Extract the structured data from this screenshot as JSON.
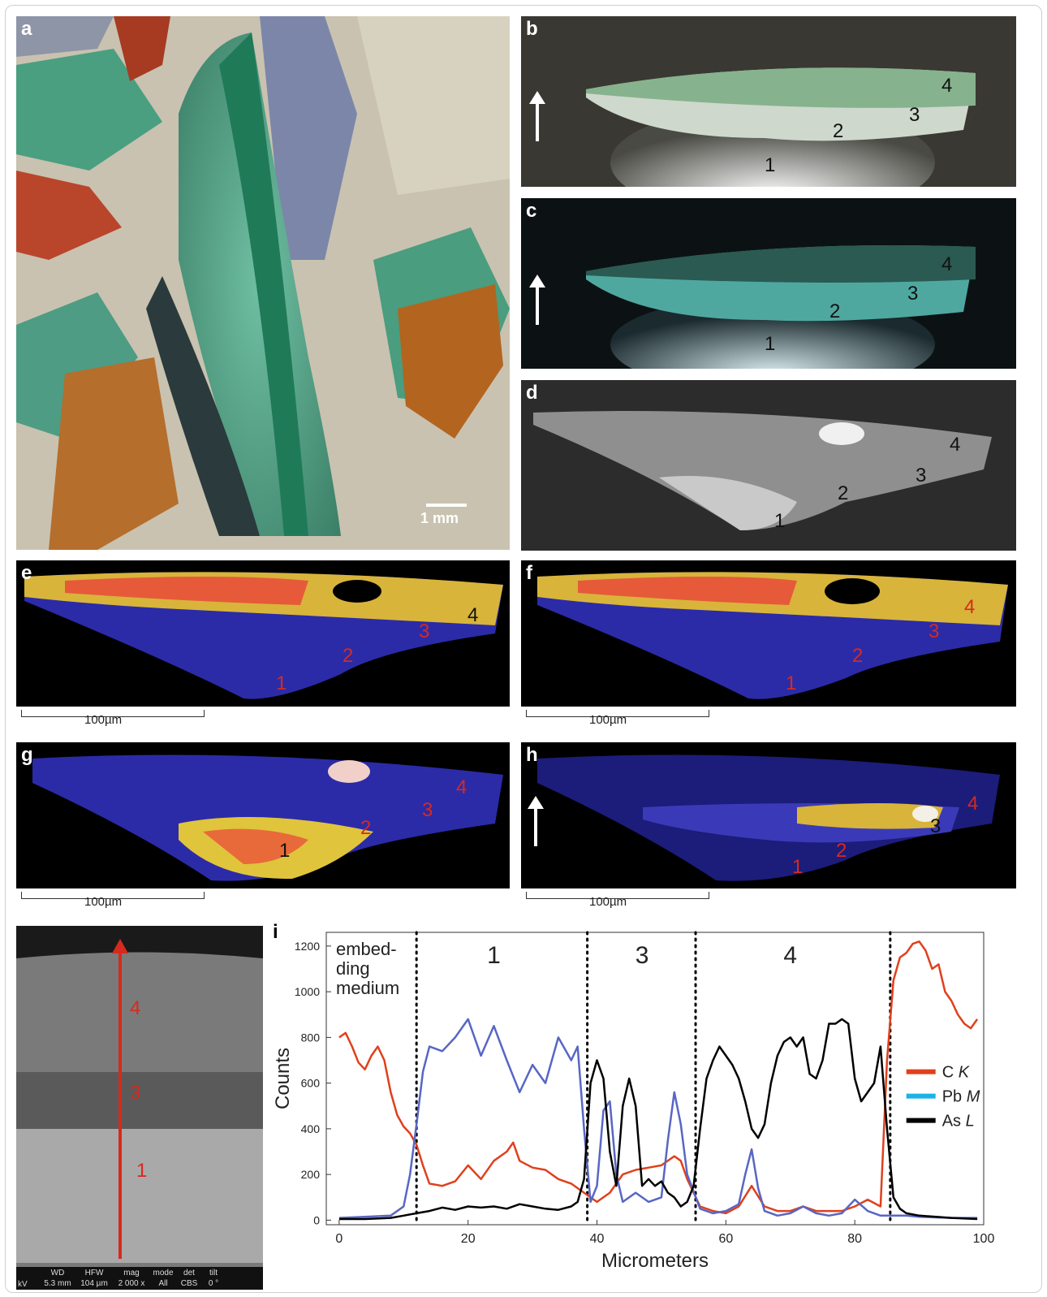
{
  "panels": {
    "a": {
      "label": "a",
      "scale": "1 mm"
    },
    "b": {
      "label": "b",
      "layers": [
        "1",
        "2",
        "3",
        "4"
      ]
    },
    "c": {
      "label": "c",
      "layers": [
        "1",
        "2",
        "3",
        "4"
      ]
    },
    "d": {
      "label": "d",
      "layers": [
        "1",
        "2",
        "3",
        "4"
      ]
    },
    "e": {
      "label": "e",
      "layers": [
        "1",
        "2",
        "3",
        "4"
      ],
      "scale": "100µm"
    },
    "f": {
      "label": "f",
      "layers": [
        "1",
        "2",
        "3",
        "4"
      ],
      "scale": "100µm"
    },
    "g": {
      "label": "g",
      "layers": [
        "1",
        "2",
        "3",
        "4"
      ],
      "scale": "100µm"
    },
    "h": {
      "label": "h",
      "layers": [
        "1",
        "2",
        "3",
        "4"
      ],
      "scale": "100µm"
    },
    "sem": {
      "layers": [
        "4",
        "3",
        "1"
      ],
      "status": {
        "headers": [
          "WD",
          "HFW",
          "mag",
          "mode",
          "det",
          "tilt"
        ],
        "values": [
          "5.3 mm",
          "104 µm",
          "2 000 x",
          "All",
          "CBS",
          "0 °"
        ],
        "left_header": "",
        "left_value": "kV"
      }
    }
  },
  "chart_data": {
    "type": "line",
    "label": "i",
    "xlabel": "Micrometers",
    "ylabel": "Counts",
    "xlim": [
      -2,
      100
    ],
    "ylim": [
      -20,
      1260
    ],
    "xticks": [
      0,
      20,
      40,
      60,
      80,
      100
    ],
    "yticks": [
      0,
      200,
      400,
      600,
      800,
      1000,
      1200
    ],
    "boundaries": [
      12,
      38.5,
      55.3,
      85.5
    ],
    "regions": [
      {
        "text": "embed-\nding\nmedium",
        "x": 6
      },
      {
        "text": "1",
        "x": 24
      },
      {
        "text": "3",
        "x": 47
      },
      {
        "text": "4",
        "x": 70
      }
    ],
    "legend": [
      {
        "name": "C",
        "suffix": "K",
        "color": "#e0401c"
      },
      {
        "name": "Pb",
        "suffix": "M",
        "color": "#1bb2e6"
      },
      {
        "name": "As",
        "suffix": "L",
        "color": "#000000"
      }
    ],
    "series": [
      {
        "name": "C K",
        "color": "#e0401c",
        "x": [
          0,
          1,
          2,
          3,
          4,
          5,
          6,
          7,
          8,
          9,
          10,
          11,
          12,
          13,
          14,
          16,
          18,
          20,
          22,
          24,
          26,
          27,
          28,
          30,
          32,
          34,
          36,
          38,
          40,
          42,
          44,
          46,
          48,
          50,
          52,
          53,
          54,
          56,
          58,
          60,
          62,
          64,
          66,
          68,
          70,
          72,
          74,
          76,
          78,
          80,
          82,
          84,
          85,
          86,
          87,
          88,
          89,
          90,
          91,
          92,
          93,
          94,
          95,
          96,
          97,
          98,
          99
        ],
        "y": [
          800,
          820,
          760,
          690,
          660,
          720,
          760,
          700,
          560,
          460,
          410,
          380,
          330,
          240,
          160,
          150,
          170,
          240,
          180,
          260,
          300,
          340,
          260,
          230,
          220,
          180,
          160,
          120,
          80,
          120,
          200,
          220,
          230,
          240,
          280,
          260,
          180,
          60,
          40,
          30,
          60,
          150,
          60,
          40,
          40,
          60,
          40,
          40,
          40,
          60,
          90,
          60,
          700,
          1050,
          1150,
          1170,
          1210,
          1220,
          1180,
          1100,
          1120,
          1000,
          960,
          900,
          860,
          840,
          880
        ]
      },
      {
        "name": "Pb M",
        "color": "#5866c4",
        "x": [
          0,
          4,
          8,
          10,
          11,
          12,
          13,
          14,
          16,
          18,
          20,
          22,
          24,
          26,
          28,
          30,
          32,
          34,
          36,
          37,
          38,
          39,
          40,
          41,
          42,
          43,
          44,
          46,
          48,
          50,
          51,
          52,
          53,
          54,
          56,
          58,
          60,
          62,
          63,
          64,
          65,
          66,
          68,
          70,
          72,
          74,
          76,
          78,
          80,
          82,
          84,
          86,
          88,
          90,
          95,
          99
        ],
        "y": [
          10,
          15,
          20,
          60,
          200,
          420,
          650,
          760,
          740,
          800,
          880,
          720,
          850,
          700,
          560,
          680,
          600,
          800,
          700,
          760,
          400,
          80,
          150,
          480,
          520,
          200,
          80,
          120,
          80,
          100,
          350,
          560,
          420,
          200,
          50,
          30,
          40,
          70,
          200,
          310,
          140,
          40,
          20,
          30,
          60,
          30,
          20,
          30,
          90,
          40,
          20,
          20,
          20,
          15,
          10,
          10
        ]
      },
      {
        "name": "As L",
        "color": "#000000",
        "x": [
          0,
          4,
          8,
          10,
          12,
          14,
          16,
          18,
          20,
          22,
          24,
          26,
          28,
          30,
          32,
          34,
          36,
          37,
          38,
          39,
          40,
          41,
          42,
          43,
          44,
          45,
          46,
          47,
          48,
          49,
          50,
          51,
          52,
          53,
          54,
          55,
          56,
          57,
          58,
          59,
          60,
          61,
          62,
          63,
          64,
          65,
          66,
          67,
          68,
          69,
          70,
          71,
          72,
          73,
          74,
          75,
          76,
          77,
          78,
          79,
          80,
          81,
          82,
          83,
          84,
          85,
          86,
          87,
          88,
          90,
          95,
          99
        ],
        "y": [
          5,
          5,
          10,
          20,
          30,
          40,
          55,
          45,
          60,
          55,
          60,
          50,
          70,
          60,
          50,
          45,
          60,
          80,
          180,
          600,
          700,
          620,
          300,
          150,
          500,
          620,
          500,
          150,
          180,
          150,
          170,
          120,
          100,
          60,
          80,
          150,
          400,
          620,
          700,
          760,
          720,
          680,
          620,
          520,
          400,
          360,
          420,
          600,
          720,
          780,
          800,
          760,
          800,
          640,
          620,
          700,
          860,
          860,
          880,
          860,
          620,
          520,
          560,
          600,
          760,
          400,
          100,
          50,
          30,
          20,
          10,
          5
        ]
      }
    ]
  }
}
